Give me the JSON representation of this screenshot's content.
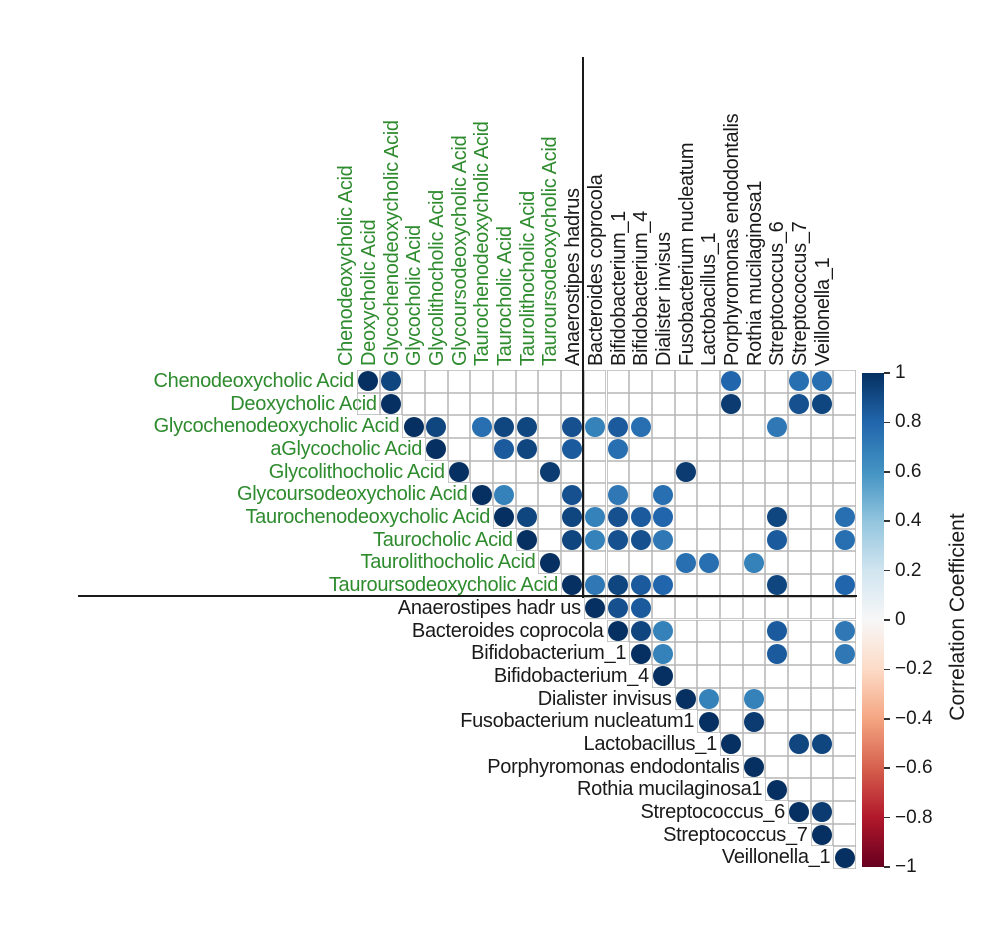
{
  "colors": {
    "background": "#ffffff",
    "bile_acid_label": "#2e8b2e",
    "bacteria_label": "#1a1a1a",
    "grid_line": "#b5b5b5",
    "divider_line": "#1a1a1a"
  },
  "chart_data": {
    "type": "heatmap",
    "subtype": "upper-triangle-correlation-dot-matrix",
    "title": "",
    "legend_position": "right",
    "grid": true,
    "row_labels": [
      {
        "text": "Chenodeoxycholic Acid",
        "group": "bile_acid"
      },
      {
        "text": "Deoxycholic Acid",
        "group": "bile_acid"
      },
      {
        "text": "Glycochenodeoxycholic Acid",
        "group": "bile_acid"
      },
      {
        "text": "aGlycocholic Acid",
        "group": "bile_acid"
      },
      {
        "text": "Glycolithocholic Acid",
        "group": "bile_acid"
      },
      {
        "text": "Glycoursodeoxycholic Acid",
        "group": "bile_acid"
      },
      {
        "text": "Taurochenodeoxycholic Acid",
        "group": "bile_acid"
      },
      {
        "text": "Taurocholic Acid",
        "group": "bile_acid"
      },
      {
        "text": "Taurolithocholic Acid",
        "group": "bile_acid"
      },
      {
        "text": "Tauroursodeoxycholic Acid",
        "group": "bile_acid"
      },
      {
        "text": "Anaerostipes hadr us",
        "group": "bacteria"
      },
      {
        "text": "Bacteroides coprocola",
        "group": "bacteria"
      },
      {
        "text": "Bifidobacterium_1",
        "group": "bacteria"
      },
      {
        "text": "Bifidobacterium_4",
        "group": "bacteria"
      },
      {
        "text": "Dialister invisus",
        "group": "bacteria"
      },
      {
        "text": "Fusobacterium nucleatum1",
        "group": "bacteria"
      },
      {
        "text": "Lactobacillus_1",
        "group": "bacteria"
      },
      {
        "text": "Porphyromonas endodontalis",
        "group": "bacteria"
      },
      {
        "text": "Rothia mucilaginosa1",
        "group": "bacteria"
      },
      {
        "text": "Streptococcus_6",
        "group": "bacteria"
      },
      {
        "text": "Streptococcus_7",
        "group": "bacteria"
      },
      {
        "text": "Veillonella_1",
        "group": "bacteria"
      }
    ],
    "col_labels": [
      {
        "text": "Chenodeoxycholic Acid",
        "group": "bile_acid"
      },
      {
        "text": "Deoxycholic Acid",
        "group": "bile_acid"
      },
      {
        "text": "Glycochenodeoxycholic Acid",
        "group": "bile_acid"
      },
      {
        "text": "Glycocholic Acid",
        "group": "bile_acid"
      },
      {
        "text": "Glycolithocholic Acid",
        "group": "bile_acid"
      },
      {
        "text": "Glycoursodeoxycholic Acid",
        "group": "bile_acid"
      },
      {
        "text": "Taurochenodeoxycholic Acid",
        "group": "bile_acid"
      },
      {
        "text": "Taurocholic Acid",
        "group": "bile_acid"
      },
      {
        "text": "Taurolithocholic Acid",
        "group": "bile_acid"
      },
      {
        "text": "Tauroursodeoxycholic Acid",
        "group": "bile_acid"
      },
      {
        "text": "Anaerostipes hadrus",
        "group": "bacteria"
      },
      {
        "text": "Bacteroides coprocola",
        "group": "bacteria"
      },
      {
        "text": "Bifidobacterium_1",
        "group": "bacteria"
      },
      {
        "text": "Bifidobacterium_4",
        "group": "bacteria"
      },
      {
        "text": "Dialister invisus",
        "group": "bacteria"
      },
      {
        "text": "Fusobacterium nucleatum",
        "group": "bacteria"
      },
      {
        "text": "Lactobacillus_1",
        "group": "bacteria"
      },
      {
        "text": "Porphyromonas endodontalis",
        "group": "bacteria"
      },
      {
        "text": "Rothia mucilaginosa1",
        "group": "bacteria"
      },
      {
        "text": "Streptococcus_6",
        "group": "bacteria"
      },
      {
        "text": "Streptococcus_7",
        "group": "bacteria"
      },
      {
        "text": "Veillonella_1",
        "group": "bacteria"
      }
    ],
    "points_format": [
      "row",
      "col",
      "correlation"
    ],
    "points": [
      [
        1,
        1,
        1.0
      ],
      [
        1,
        2,
        0.9
      ],
      [
        1,
        17,
        0.75
      ],
      [
        1,
        20,
        0.7
      ],
      [
        1,
        21,
        0.7
      ],
      [
        2,
        2,
        1.0
      ],
      [
        2,
        17,
        0.95
      ],
      [
        2,
        20,
        0.85
      ],
      [
        2,
        21,
        0.9
      ],
      [
        3,
        3,
        1.0
      ],
      [
        3,
        4,
        0.9
      ],
      [
        3,
        6,
        0.7
      ],
      [
        3,
        7,
        0.9
      ],
      [
        3,
        8,
        0.9
      ],
      [
        3,
        10,
        0.85
      ],
      [
        3,
        11,
        0.6
      ],
      [
        3,
        12,
        0.8
      ],
      [
        3,
        13,
        0.7
      ],
      [
        3,
        19,
        0.65
      ],
      [
        4,
        4,
        1.0
      ],
      [
        4,
        7,
        0.8
      ],
      [
        4,
        8,
        0.9
      ],
      [
        4,
        10,
        0.8
      ],
      [
        4,
        12,
        0.7
      ],
      [
        5,
        5,
        1.0
      ],
      [
        5,
        9,
        0.95
      ],
      [
        5,
        15,
        0.95
      ],
      [
        6,
        6,
        1.0
      ],
      [
        6,
        7,
        0.6
      ],
      [
        6,
        10,
        0.85
      ],
      [
        6,
        12,
        0.65
      ],
      [
        6,
        14,
        0.7
      ],
      [
        7,
        7,
        1.0
      ],
      [
        7,
        8,
        0.9
      ],
      [
        7,
        10,
        0.9
      ],
      [
        7,
        11,
        0.6
      ],
      [
        7,
        12,
        0.85
      ],
      [
        7,
        13,
        0.8
      ],
      [
        7,
        14,
        0.75
      ],
      [
        7,
        19,
        0.9
      ],
      [
        7,
        22,
        0.7
      ],
      [
        8,
        8,
        1.0
      ],
      [
        8,
        10,
        0.9
      ],
      [
        8,
        11,
        0.6
      ],
      [
        8,
        12,
        0.85
      ],
      [
        8,
        13,
        0.85
      ],
      [
        8,
        14,
        0.65
      ],
      [
        8,
        19,
        0.8
      ],
      [
        8,
        22,
        0.7
      ],
      [
        9,
        9,
        1.0
      ],
      [
        9,
        15,
        0.7
      ],
      [
        9,
        16,
        0.7
      ],
      [
        9,
        18,
        0.6
      ],
      [
        10,
        10,
        1.0
      ],
      [
        10,
        11,
        0.65
      ],
      [
        10,
        12,
        0.9
      ],
      [
        10,
        13,
        0.8
      ],
      [
        10,
        14,
        0.75
      ],
      [
        10,
        19,
        0.9
      ],
      [
        10,
        22,
        0.75
      ],
      [
        11,
        11,
        1.0
      ],
      [
        11,
        12,
        0.85
      ],
      [
        11,
        13,
        0.8
      ],
      [
        12,
        12,
        1.0
      ],
      [
        12,
        13,
        0.9
      ],
      [
        12,
        14,
        0.6
      ],
      [
        12,
        19,
        0.8
      ],
      [
        12,
        22,
        0.65
      ],
      [
        13,
        13,
        1.0
      ],
      [
        13,
        14,
        0.6
      ],
      [
        13,
        19,
        0.8
      ],
      [
        13,
        22,
        0.65
      ],
      [
        14,
        14,
        1.0
      ],
      [
        15,
        15,
        1.0
      ],
      [
        15,
        16,
        0.6
      ],
      [
        15,
        18,
        0.6
      ],
      [
        16,
        16,
        1.0
      ],
      [
        16,
        18,
        0.95
      ],
      [
        17,
        17,
        1.0
      ],
      [
        17,
        20,
        0.9
      ],
      [
        17,
        21,
        0.9
      ],
      [
        18,
        18,
        1.0
      ],
      [
        19,
        19,
        1.0
      ],
      [
        20,
        20,
        1.0
      ],
      [
        20,
        21,
        0.95
      ],
      [
        21,
        21,
        1.0
      ],
      [
        22,
        22,
        1.0
      ]
    ],
    "extra_empty_cells": [
      [
        2,
        1
      ]
    ],
    "value_range": [
      -1,
      1
    ],
    "colorbar": {
      "title": "Correlation Coefficient",
      "tick_labels": [
        "1",
        "0.8",
        "0.6",
        "0.4",
        "0.2",
        "0",
        "−0.2",
        "−0.4",
        "−0.6",
        "−0.8",
        "−1"
      ],
      "tick_values": [
        1,
        0.8,
        0.6,
        0.4,
        0.2,
        0,
        -0.2,
        -0.4,
        -0.6,
        -0.8,
        -1
      ],
      "gradient_stops": [
        "#053061",
        "#2166ac",
        "#4393c3",
        "#92c5de",
        "#d1e5f0",
        "#f7f7f7",
        "#fddbc7",
        "#f4a582",
        "#d6604d",
        "#b2182b",
        "#67001f"
      ]
    }
  }
}
